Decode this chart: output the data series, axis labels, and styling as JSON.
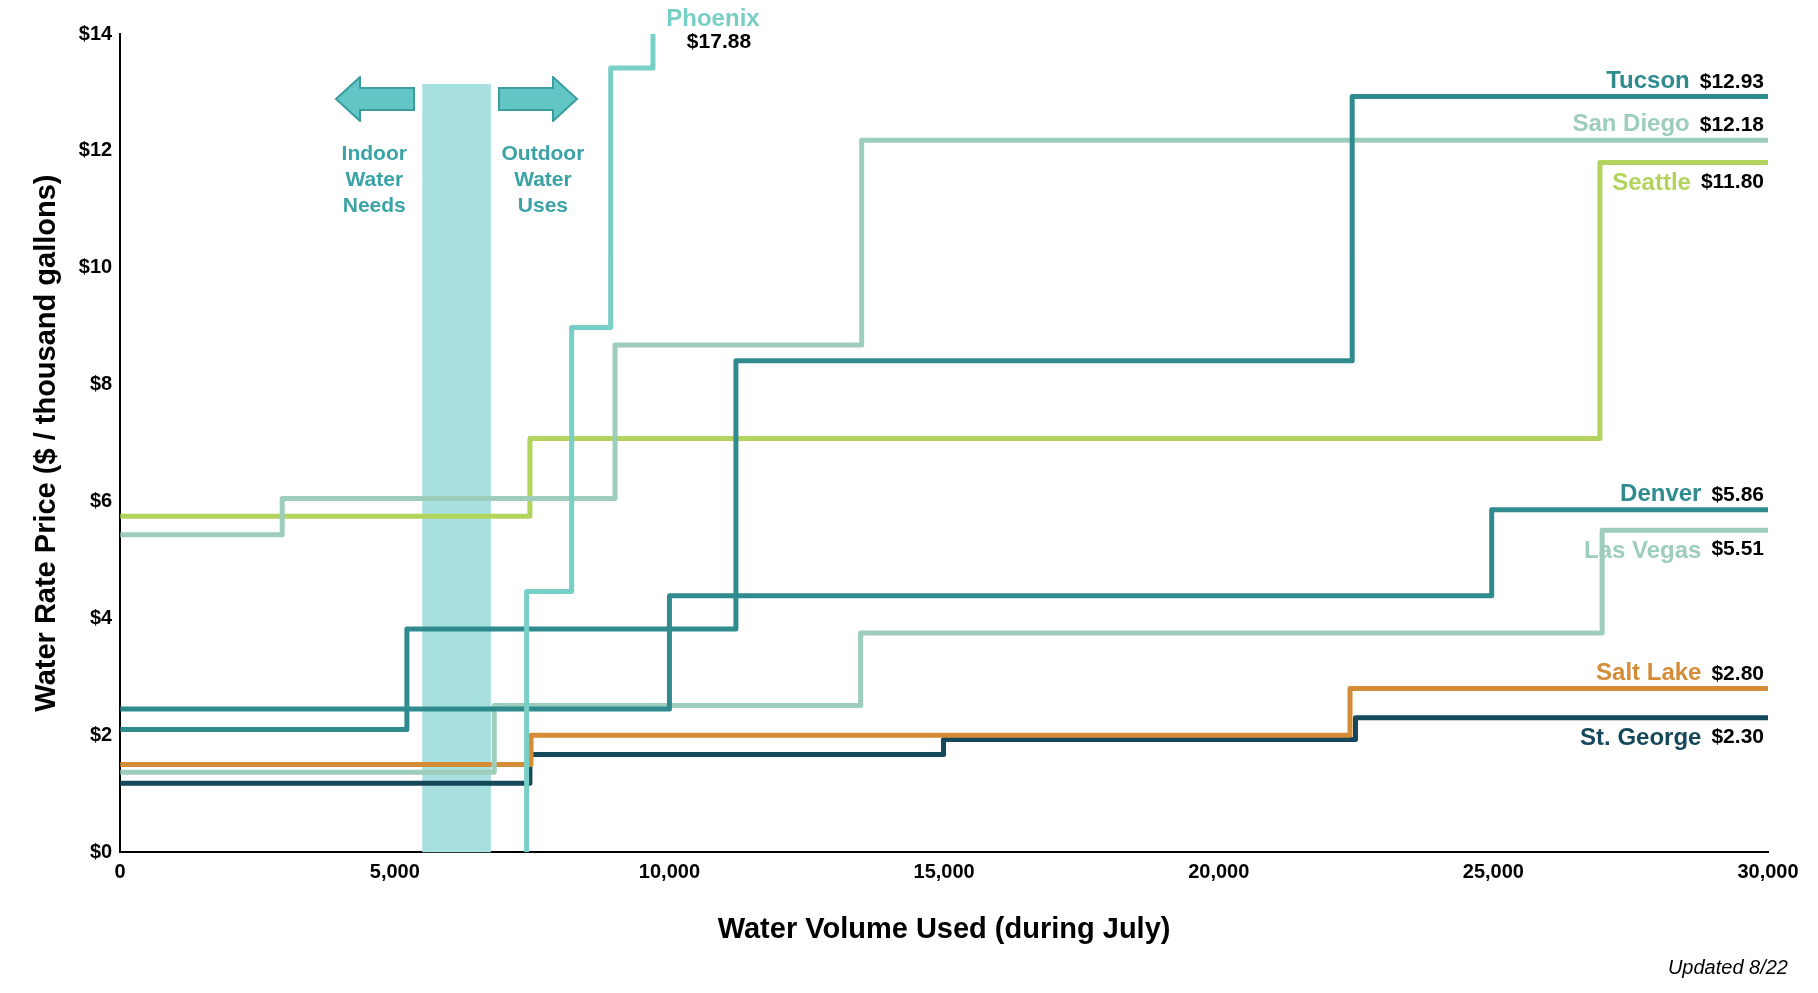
{
  "chart_data": {
    "type": "step",
    "xlabel": "Water Volume Used (during July)",
    "ylabel": "Water Rate Price ($ / thousand gallons)",
    "xlim": [
      0,
      30000
    ],
    "ylim": [
      0,
      14
    ],
    "xticks": [
      0,
      {
        "value": 5000,
        "label": "5,000"
      },
      {
        "value": 10000,
        "label": "10,000"
      },
      {
        "value": 15000,
        "label": "15,000"
      },
      {
        "value": 20000,
        "label": "20,000"
      },
      {
        "value": 25000,
        "label": "25,000"
      },
      {
        "value": 30000,
        "label": "30,000"
      }
    ],
    "yticks": [
      {
        "value": 0,
        "label": "$0"
      },
      {
        "value": 2,
        "label": "$2"
      },
      {
        "value": 4,
        "label": "$4"
      },
      {
        "value": 6,
        "label": "$6"
      },
      {
        "value": 8,
        "label": "$8"
      },
      {
        "value": 10,
        "label": "$10"
      },
      {
        "value": 12,
        "label": "$12"
      },
      {
        "value": 14,
        "label": "$14"
      }
    ],
    "grid": false,
    "legend": false,
    "series": [
      {
        "name": "Phoenix",
        "color": "#78cfc5",
        "x": [
          7400,
          7400,
          8220,
          8930,
          9700
        ],
        "values": [
          0,
          4.46,
          8.98,
          13.42,
          14
        ]
      },
      {
        "name": "Tucson",
        "color": "#2f8b8e",
        "x": [
          0,
          5220,
          11210,
          22430,
          30000
        ],
        "values": [
          2.1,
          3.82,
          8.41,
          12.93,
          12.93
        ],
        "value_labels": [
          null,
          null,
          null,
          null,
          "$12.93"
        ]
      },
      {
        "name": "San Diego",
        "color": "#9dcdbb",
        "x": [
          0,
          2950,
          9010,
          13500,
          30000
        ],
        "values": [
          5.43,
          6.05,
          8.68,
          12.18,
          12.18
        ],
        "value_labels": [
          null,
          null,
          null,
          null,
          "$12.18"
        ]
      },
      {
        "name": "Seattle",
        "color": "#b2d45c",
        "x": [
          0,
          7460,
          26940,
          30000
        ],
        "values": [
          5.75,
          7.08,
          11.8,
          11.8
        ],
        "value_labels": [
          null,
          null,
          null,
          "$11.80"
        ]
      },
      {
        "name": "Denver",
        "color": "#2f8b8e",
        "x": [
          0,
          10000,
          24970,
          30000
        ],
        "values": [
          2.45,
          4.39,
          5.86,
          5.86
        ],
        "value_labels": [
          null,
          null,
          null,
          "$5.86"
        ]
      },
      {
        "name": "Las Vegas",
        "color": "#9dcdbb",
        "x": [
          0,
          6810,
          13480,
          26980,
          30000
        ],
        "values": [
          1.37,
          2.51,
          3.75,
          5.51,
          5.51
        ],
        "value_labels": [
          null,
          null,
          null,
          null,
          "$5.51"
        ]
      },
      {
        "name": "Salt Lake",
        "color": "#d48c36",
        "x": [
          0,
          7480,
          22390,
          30000
        ],
        "values": [
          1.5,
          2,
          2.8,
          2.8
        ],
        "value_labels": [
          null,
          null,
          null,
          "$2.80"
        ]
      },
      {
        "name": "St. George",
        "color": "#15485a",
        "x": [
          0,
          7460,
          14990,
          22490,
          30000
        ],
        "values": [
          1.18,
          1.67,
          1.93,
          2.3,
          2.3
        ],
        "value_labels": [
          null,
          null,
          null,
          null,
          "$2.30"
        ]
      }
    ],
    "bands": [
      {
        "axis": "x",
        "from": 5500,
        "to": 6750,
        "color": "#a8e0e0"
      }
    ],
    "annotations": [
      "Indoor Water Needs",
      "Outdoor Water Uses",
      "$17.88",
      "Updated 8/22"
    ]
  }
}
